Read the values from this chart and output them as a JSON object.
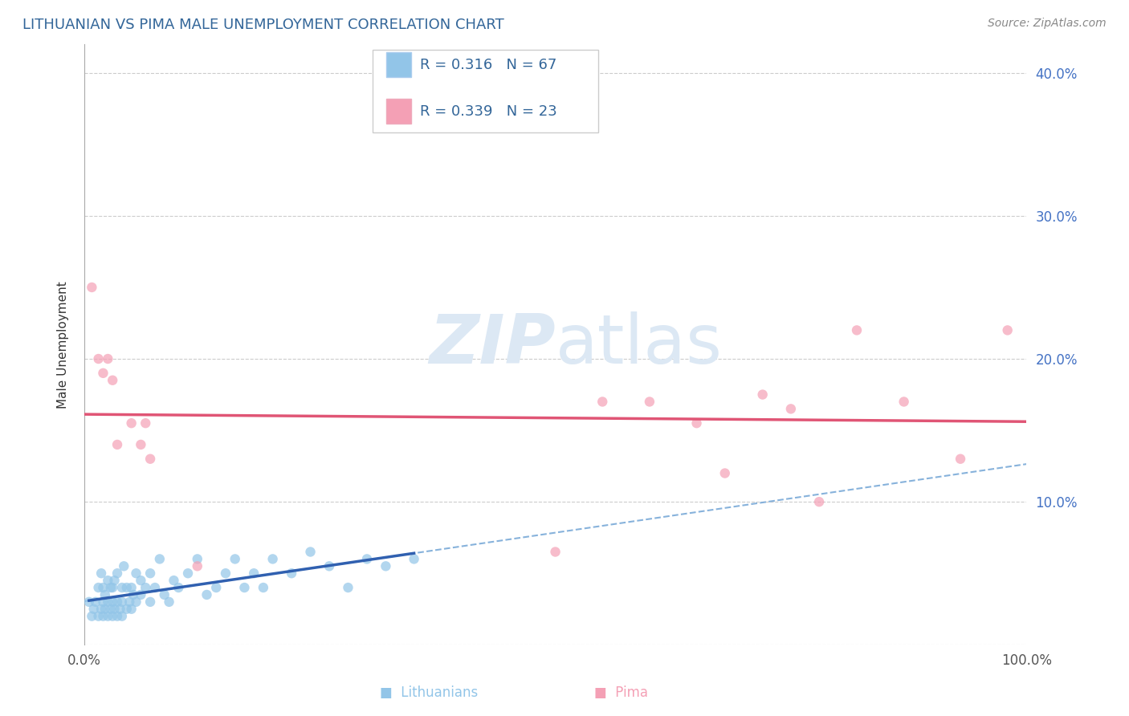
{
  "title": "LITHUANIAN VS PIMA MALE UNEMPLOYMENT CORRELATION CHART",
  "source": "Source: ZipAtlas.com",
  "ylabel": "Male Unemployment",
  "xlim": [
    0.0,
    1.0
  ],
  "ylim": [
    0.0,
    0.42
  ],
  "yticks": [
    0.0,
    0.1,
    0.2,
    0.3,
    0.4
  ],
  "yticklabels": [
    "",
    "10.0%",
    "20.0%",
    "30.0%",
    "40.0%"
  ],
  "legend_R_lith": "0.316",
  "legend_N_lith": "67",
  "legend_R_pima": "0.339",
  "legend_N_pima": "23",
  "lith_color": "#92c5e8",
  "pima_color": "#f4a0b5",
  "lith_line_color": "#3060b0",
  "pima_line_color": "#e05575",
  "dashed_line_color": "#7aaad8",
  "watermark_color": "#dce8f4",
  "background_color": "#ffffff",
  "lith_x": [
    0.005,
    0.008,
    0.01,
    0.012,
    0.015,
    0.015,
    0.018,
    0.018,
    0.02,
    0.02,
    0.02,
    0.022,
    0.022,
    0.025,
    0.025,
    0.025,
    0.028,
    0.028,
    0.03,
    0.03,
    0.03,
    0.032,
    0.032,
    0.035,
    0.035,
    0.035,
    0.038,
    0.04,
    0.04,
    0.04,
    0.042,
    0.045,
    0.045,
    0.048,
    0.05,
    0.05,
    0.052,
    0.055,
    0.055,
    0.06,
    0.06,
    0.065,
    0.07,
    0.07,
    0.075,
    0.08,
    0.085,
    0.09,
    0.095,
    0.1,
    0.11,
    0.12,
    0.13,
    0.14,
    0.15,
    0.16,
    0.17,
    0.18,
    0.19,
    0.2,
    0.22,
    0.24,
    0.26,
    0.28,
    0.3,
    0.32,
    0.35
  ],
  "lith_y": [
    0.03,
    0.02,
    0.025,
    0.03,
    0.02,
    0.04,
    0.025,
    0.05,
    0.02,
    0.03,
    0.04,
    0.025,
    0.035,
    0.02,
    0.03,
    0.045,
    0.025,
    0.04,
    0.02,
    0.03,
    0.04,
    0.025,
    0.045,
    0.02,
    0.03,
    0.05,
    0.025,
    0.02,
    0.03,
    0.04,
    0.055,
    0.025,
    0.04,
    0.03,
    0.025,
    0.04,
    0.035,
    0.03,
    0.05,
    0.035,
    0.045,
    0.04,
    0.03,
    0.05,
    0.04,
    0.06,
    0.035,
    0.03,
    0.045,
    0.04,
    0.05,
    0.06,
    0.035,
    0.04,
    0.05,
    0.06,
    0.04,
    0.05,
    0.04,
    0.06,
    0.05,
    0.065,
    0.055,
    0.04,
    0.06,
    0.055,
    0.06
  ],
  "pima_x": [
    0.008,
    0.015,
    0.02,
    0.025,
    0.03,
    0.035,
    0.05,
    0.06,
    0.065,
    0.07,
    0.12,
    0.5,
    0.55,
    0.6,
    0.65,
    0.68,
    0.72,
    0.75,
    0.78,
    0.82,
    0.87,
    0.93,
    0.98
  ],
  "pima_y": [
    0.25,
    0.2,
    0.19,
    0.2,
    0.185,
    0.14,
    0.155,
    0.14,
    0.155,
    0.13,
    0.055,
    0.065,
    0.17,
    0.17,
    0.155,
    0.12,
    0.175,
    0.165,
    0.1,
    0.22,
    0.17,
    0.13,
    0.22
  ]
}
